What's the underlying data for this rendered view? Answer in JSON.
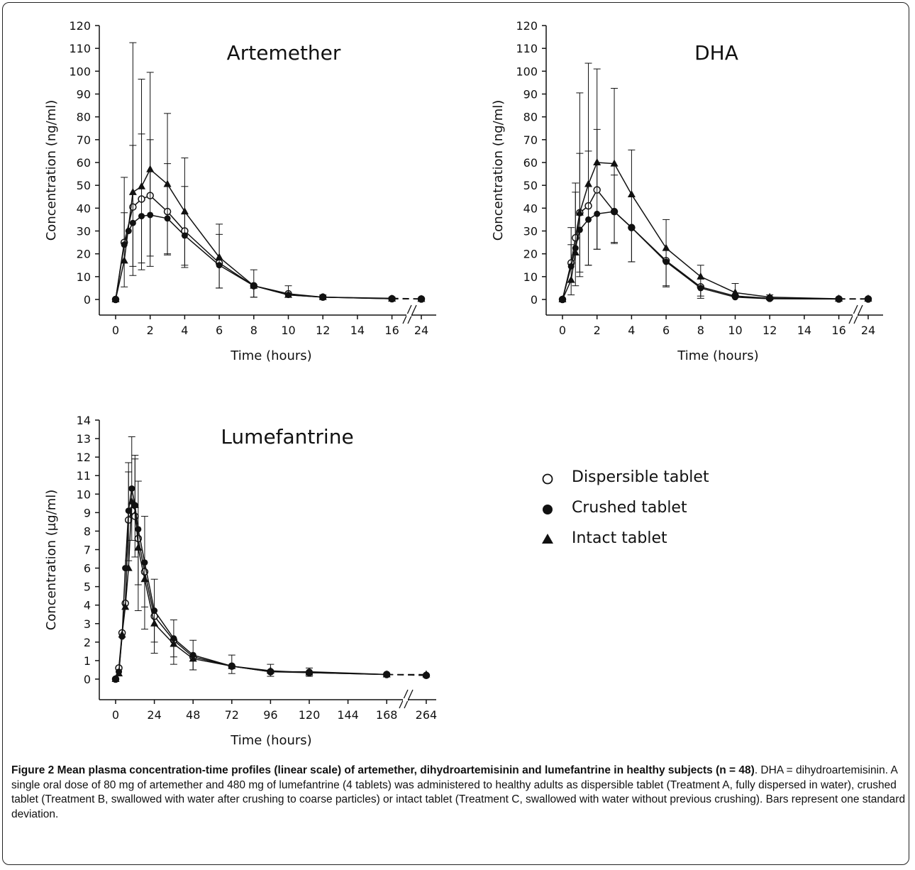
{
  "figure": {
    "caption_bold": "Figure 2 Mean plasma concentration-time profiles (linear scale) of artemether, dihydroartemisinin and lumefantrine in healthy subjects (n = 48)",
    "caption_text": ". DHA = dihydroartemisinin. A single oral dose of 80 mg of artemether and 480 mg of lumefantrine (4 tablets) was administered to healthy adults as dispersible tablet (Treatment A, fully dispersed in water), crushed tablet (Treatment B, swallowed with water after crushing to coarse particles) or intact tablet (Treatment C, swallowed with water without previous crushing). Bars represent one standard deviation."
  },
  "legend": {
    "items": [
      {
        "label": "Dispersible tablet",
        "marker": "open-circle"
      },
      {
        "label": "Crushed tablet",
        "marker": "filled-circle"
      },
      {
        "label": "Intact tablet",
        "marker": "filled-triangle"
      }
    ]
  },
  "chart_data": [
    {
      "type": "line",
      "title": "Artemether",
      "xlabel": "Time (hours)",
      "ylabel": "Concentration (ng/ml)",
      "ylim": [
        0,
        120
      ],
      "yticks": [
        0,
        10,
        20,
        30,
        40,
        50,
        60,
        70,
        80,
        90,
        100,
        110,
        120
      ],
      "xticks": [
        0,
        2,
        4,
        6,
        8,
        10,
        12,
        14,
        16,
        24
      ],
      "axis_break": "between 16 and 24",
      "series": [
        {
          "name": "Dispersible tablet",
          "marker": "open-circle",
          "x": [
            0,
            0.5,
            1,
            1.5,
            2,
            3,
            4,
            6,
            8,
            10,
            12,
            16,
            24
          ],
          "y": [
            0,
            25,
            40.5,
            44,
            45.5,
            38.5,
            30,
            16,
            6,
            2.5,
            1,
            0.3,
            0.2
          ],
          "sd_up": [
            0,
            53.5,
            67.5,
            72.5,
            70,
            59.5,
            49.5,
            28.5,
            0,
            0,
            0,
            0,
            0
          ]
        },
        {
          "name": "Crushed tablet",
          "marker": "filled-circle",
          "x": [
            0,
            0.5,
            0.75,
            1,
            1.5,
            2,
            3,
            4,
            6,
            8,
            10,
            12,
            16,
            24
          ],
          "y": [
            0,
            24,
            30,
            33.5,
            36.5,
            37,
            35.5,
            28,
            15,
            6,
            2,
            1,
            0.5,
            0.3
          ],
          "sd_low": [
            0,
            0,
            0,
            14.5,
            16,
            19,
            20,
            14,
            5,
            1,
            0,
            0,
            0,
            0
          ]
        },
        {
          "name": "Intact tablet",
          "marker": "filled-triangle",
          "x": [
            0,
            0.5,
            1,
            1.5,
            2,
            3,
            4,
            6,
            8,
            10,
            12,
            16,
            24
          ],
          "y": [
            0,
            17,
            47,
            49.5,
            57,
            50.5,
            38.5,
            18.5,
            6,
            2,
            1,
            0.3,
            0.2
          ],
          "sd_up": [
            0,
            38,
            112.5,
            96.5,
            99.5,
            81.5,
            62,
            33,
            13,
            6,
            2,
            1,
            0
          ],
          "sd_low": [
            0,
            5.5,
            10.5,
            13,
            14.5,
            19.5,
            15,
            5,
            1,
            0,
            0,
            0,
            0
          ]
        }
      ]
    },
    {
      "type": "line",
      "title": "DHA",
      "xlabel": "Time (hours)",
      "ylabel": "Concentration (ng/ml)",
      "ylim": [
        0,
        120
      ],
      "yticks": [
        0,
        10,
        20,
        30,
        40,
        50,
        60,
        70,
        80,
        90,
        100,
        110,
        120
      ],
      "xticks": [
        0,
        2,
        4,
        6,
        8,
        10,
        12,
        14,
        16,
        24
      ],
      "axis_break": "between 16 and 24",
      "series": [
        {
          "name": "Dispersible tablet",
          "marker": "open-circle",
          "x": [
            0,
            0.5,
            0.75,
            1,
            1.5,
            2,
            3,
            4,
            6,
            8,
            10,
            12,
            16,
            24
          ],
          "y": [
            0,
            16,
            27,
            38,
            41,
            48,
            38.5,
            31.5,
            17,
            5.5,
            1.5,
            0.5,
            0.2,
            0.2
          ],
          "sd_up": [
            0,
            31.5,
            51,
            64,
            65,
            74.5,
            54.5,
            0,
            0,
            0,
            0,
            0,
            0,
            0
          ]
        },
        {
          "name": "Crushed tablet",
          "marker": "filled-circle",
          "x": [
            0,
            0.5,
            0.75,
            1,
            1.5,
            2,
            3,
            4,
            6,
            8,
            10,
            12,
            16,
            24
          ],
          "y": [
            0,
            14.5,
            22.5,
            30.5,
            35,
            37.5,
            38.5,
            31.5,
            16.5,
            5,
            1,
            0.3,
            0.2,
            0.2
          ],
          "sd_low": [
            0,
            0,
            0,
            10,
            15,
            22,
            24.5,
            16.5,
            5.5,
            0.5,
            0,
            0,
            0,
            0
          ]
        },
        {
          "name": "Intact tablet",
          "marker": "filled-triangle",
          "x": [
            0,
            0.5,
            0.75,
            1,
            1.5,
            2,
            3,
            4,
            6,
            8,
            10,
            12,
            16,
            24
          ],
          "y": [
            0,
            8.5,
            20.5,
            38,
            50.5,
            60,
            59.5,
            46,
            22.5,
            10,
            3,
            1,
            0.3,
            0.3
          ],
          "sd_up": [
            0,
            24,
            47,
            90.5,
            103.5,
            101,
            92.5,
            65.5,
            35,
            15,
            7,
            2,
            0.5,
            0
          ],
          "sd_low": [
            0,
            2,
            6,
            12,
            15,
            22,
            25,
            16.5,
            6,
            1.5,
            0,
            0,
            0,
            0
          ]
        }
      ]
    },
    {
      "type": "line",
      "title": "Lumefantrine",
      "xlabel": "Time (hours)",
      "ylabel": "Concentration (µg/ml)",
      "ylim": [
        0,
        14
      ],
      "yticks": [
        0,
        1,
        2,
        3,
        4,
        5,
        6,
        7,
        8,
        9,
        10,
        11,
        12,
        13,
        14
      ],
      "xticks": [
        0,
        24,
        48,
        72,
        96,
        120,
        144,
        168,
        264
      ],
      "axis_break": "between 168 and 264",
      "series": [
        {
          "name": "Dispersible tablet",
          "marker": "open-circle",
          "x": [
            0,
            2,
            4,
            6,
            8,
            10,
            12,
            14,
            18,
            24,
            36,
            48,
            72,
            96,
            120,
            168,
            264
          ],
          "y": [
            0,
            0.6,
            2.5,
            4.1,
            8.6,
            9.1,
            8.8,
            7.6,
            5.8,
            3.4,
            2.1,
            1.2,
            0.7,
            0.4,
            0.35,
            0.25,
            0.2
          ],
          "sd_up": [
            0,
            0,
            0,
            0,
            11.2,
            0,
            11.9,
            0,
            0,
            0,
            0,
            0,
            0,
            0,
            0,
            0,
            0
          ]
        },
        {
          "name": "Crushed tablet",
          "marker": "filled-circle",
          "x": [
            0,
            2,
            4,
            6,
            8,
            10,
            12,
            14,
            18,
            24,
            36,
            48,
            72,
            96,
            120,
            168,
            264
          ],
          "y": [
            0,
            0.4,
            2.3,
            6,
            9.1,
            10.3,
            9.4,
            8.1,
            6.3,
            3.7,
            2.2,
            1.3,
            0.7,
            0.4,
            0.4,
            0.25,
            0.2
          ],
          "sd_up": [
            0,
            0,
            0,
            0,
            11.7,
            13.1,
            12.1,
            10.7,
            8.8,
            5.4,
            3.2,
            2.1,
            1.3,
            0.8,
            0.6,
            0,
            0
          ],
          "sd_low": [
            0,
            0,
            0,
            0,
            6.4,
            7.5,
            6.6,
            5.1,
            3.9,
            2,
            1.2,
            0.5,
            0.3,
            0.15,
            0.15,
            0,
            0
          ]
        },
        {
          "name": "Intact tablet",
          "marker": "filled-triangle",
          "x": [
            0,
            2,
            4,
            6,
            8,
            10,
            12,
            14,
            18,
            24,
            36,
            48,
            72,
            96,
            120,
            168,
            264
          ],
          "y": [
            0,
            0.3,
            2.4,
            3.9,
            6,
            9.6,
            9.4,
            7.1,
            5.4,
            3,
            1.9,
            1.1,
            0.7,
            0.45,
            0.35,
            0.25,
            0.25
          ],
          "sd_low": [
            0,
            0,
            0,
            0,
            0,
            0,
            0,
            3.7,
            2.7,
            1.4,
            0.8,
            0.5,
            0,
            0,
            0,
            0,
            0
          ]
        }
      ]
    }
  ]
}
